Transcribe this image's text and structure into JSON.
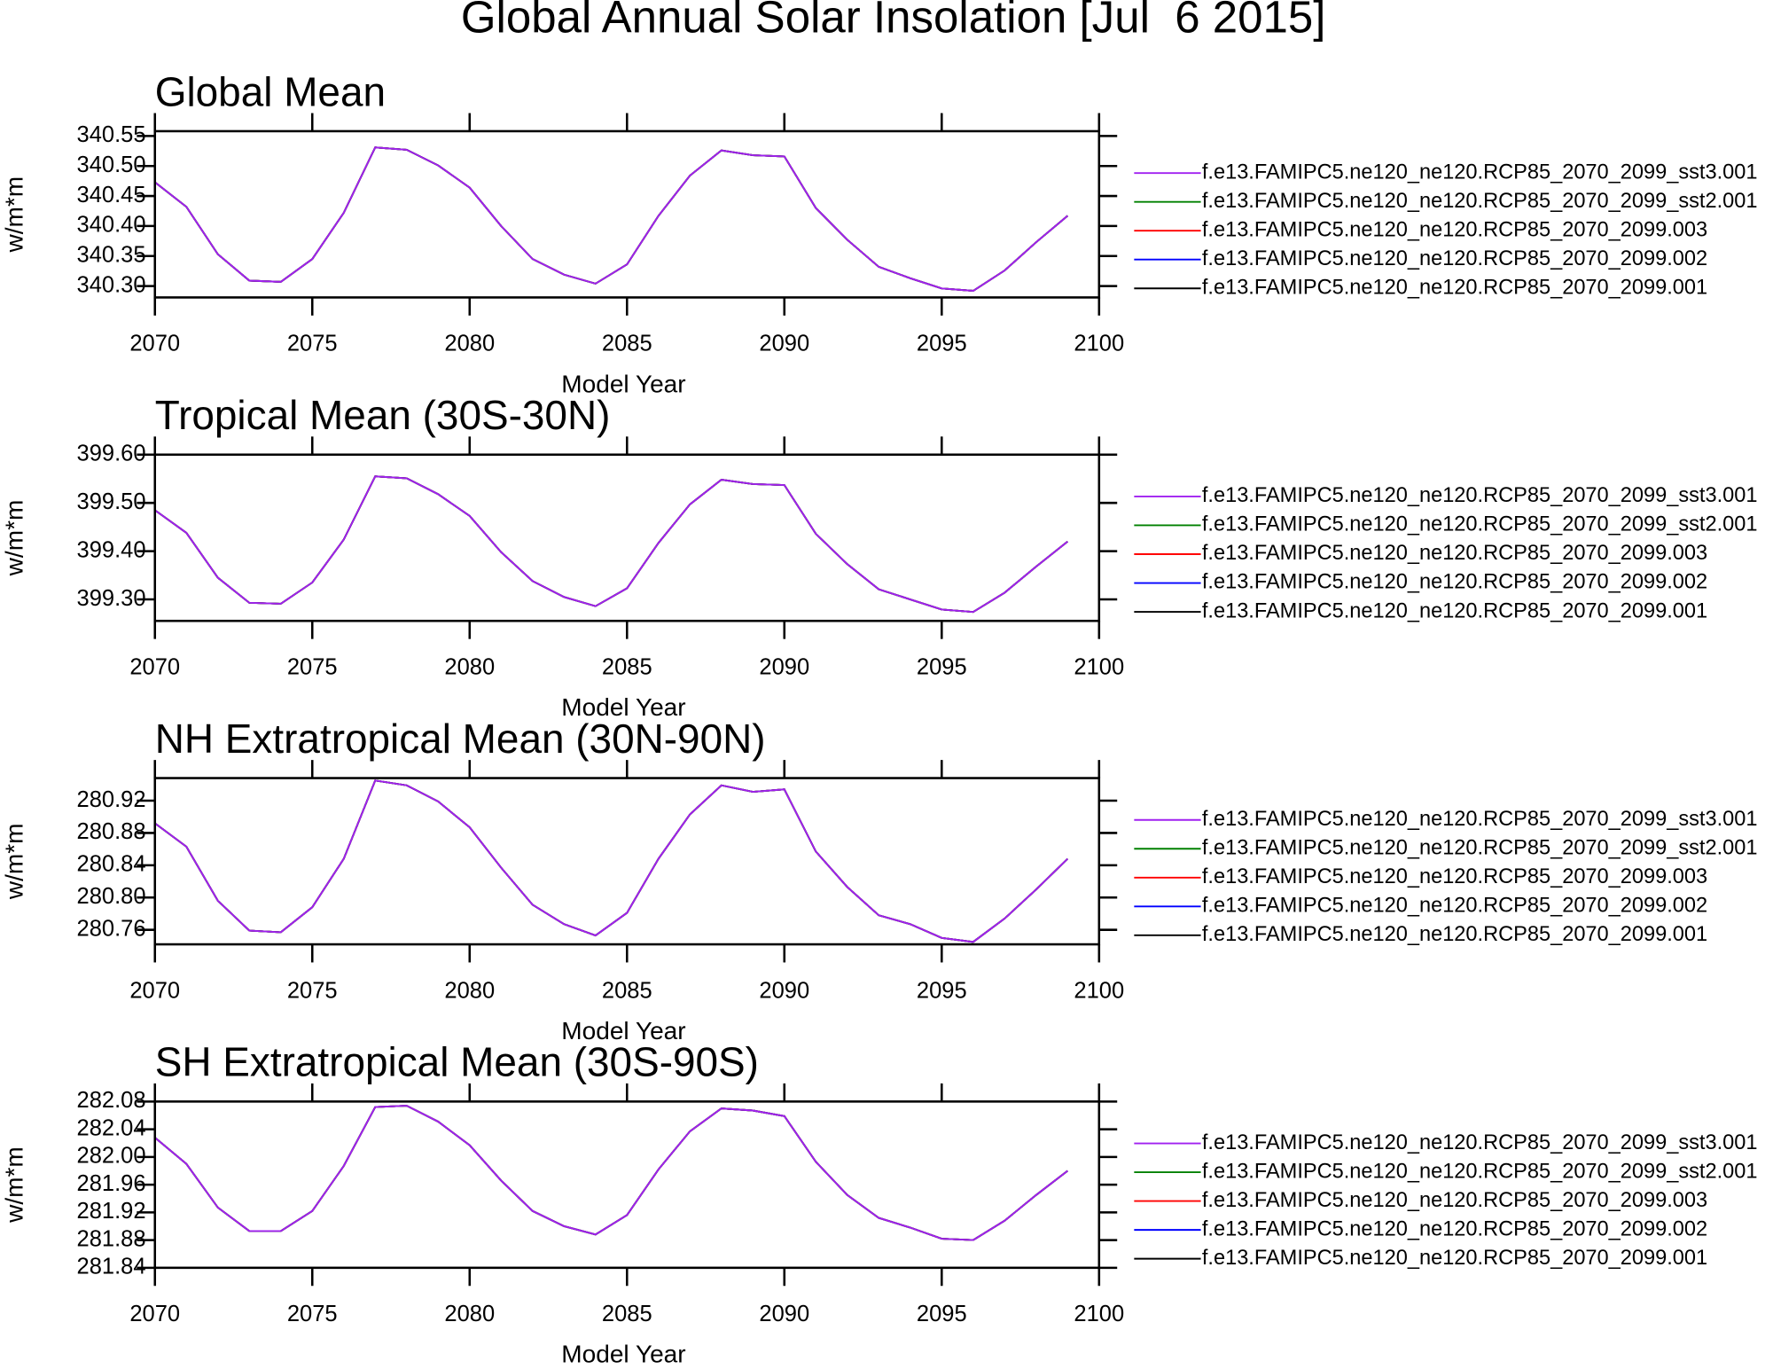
{
  "title": "Global Annual Solar Insolation [Jul  6 2015]",
  "chart_data": [
    {
      "type": "line",
      "title": "Global Mean",
      "xlabel": "Model Year",
      "ylabel": "w/m*m",
      "x": [
        2070,
        2071,
        2072,
        2073,
        2074,
        2075,
        2076,
        2077,
        2078,
        2079,
        2080,
        2081,
        2082,
        2083,
        2084,
        2085,
        2086,
        2087,
        2088,
        2089,
        2090,
        2091,
        2092,
        2093,
        2094,
        2095,
        2096,
        2097,
        2098,
        2099
      ],
      "xlim": [
        2070,
        2100
      ],
      "xticks": [
        2070,
        2075,
        2080,
        2085,
        2090,
        2095,
        2100
      ],
      "ylim": [
        340.281,
        340.558
      ],
      "yticks": [
        {
          "value": 340.3,
          "label": "340.30"
        },
        340.35,
        {
          "value": 340.4,
          "label": "340.40"
        },
        340.45,
        {
          "value": 340.5,
          "label": "340.50"
        },
        340.55
      ],
      "series": [
        {
          "name": "f.e13.FAMIPC5.ne120_ne120.RCP85_2070_2099_sst3.001",
          "color": "#a020f0",
          "values": [
            340.473,
            340.432,
            340.353,
            340.309,
            340.307,
            340.345,
            340.422,
            340.531,
            340.527,
            340.501,
            340.464,
            340.4,
            340.345,
            340.319,
            340.304,
            340.336,
            340.417,
            340.484,
            340.526,
            340.518,
            340.516,
            340.43,
            340.377,
            340.332,
            340.313,
            340.296,
            340.292,
            340.326,
            340.373,
            340.417
          ]
        },
        {
          "name": "f.e13.FAMIPC5.ne120_ne120.RCP85_2070_2099_sst2.001",
          "color": "#008000",
          "values": [
            340.473,
            340.432,
            340.353,
            340.309,
            340.307,
            340.345,
            340.422,
            340.531,
            340.527,
            340.501,
            340.464,
            340.4,
            340.345,
            340.319,
            340.304,
            340.336,
            340.417,
            340.484,
            340.526,
            340.518,
            340.516,
            340.43,
            340.377,
            340.332,
            340.313,
            340.296,
            340.292,
            340.326,
            340.373,
            340.417
          ]
        },
        {
          "name": "f.e13.FAMIPC5.ne120_ne120.RCP85_2070_2099.003",
          "color": "#ff0000",
          "values": [
            340.473,
            340.432,
            340.353,
            340.309,
            340.307,
            340.345,
            340.422,
            340.531,
            340.527,
            340.501,
            340.464,
            340.4,
            340.345,
            340.319,
            340.304,
            340.336,
            340.417,
            340.484,
            340.526,
            340.518,
            340.516,
            340.43,
            340.377,
            340.332,
            340.313,
            340.296,
            340.292,
            340.326,
            340.373,
            340.417
          ]
        },
        {
          "name": "f.e13.FAMIPC5.ne120_ne120.RCP85_2070_2099.002",
          "color": "#0000ff",
          "values": [
            340.473,
            340.432,
            340.353,
            340.309,
            340.307,
            340.345,
            340.422,
            340.531,
            340.527,
            340.501,
            340.464,
            340.4,
            340.345,
            340.319,
            340.304,
            340.336,
            340.417,
            340.484,
            340.526,
            340.518,
            340.516,
            340.43,
            340.377,
            340.332,
            340.313,
            340.296,
            340.292,
            340.326,
            340.373,
            340.417
          ]
        },
        {
          "name": "f.e13.FAMIPC5.ne120_ne120.RCP85_2070_2099.001",
          "color": "#000000",
          "values": [
            340.473,
            340.432,
            340.353,
            340.309,
            340.307,
            340.345,
            340.422,
            340.531,
            340.527,
            340.501,
            340.464,
            340.4,
            340.345,
            340.319,
            340.304,
            340.336,
            340.417,
            340.484,
            340.526,
            340.518,
            340.516,
            340.43,
            340.377,
            340.332,
            340.313,
            340.296,
            340.292,
            340.326,
            340.373,
            340.417
          ]
        }
      ]
    },
    {
      "type": "line",
      "title": "Tropical Mean (30S-30N)",
      "xlabel": "Model Year",
      "ylabel": "w/m*m",
      "x": [
        2070,
        2071,
        2072,
        2073,
        2074,
        2075,
        2076,
        2077,
        2078,
        2079,
        2080,
        2081,
        2082,
        2083,
        2084,
        2085,
        2086,
        2087,
        2088,
        2089,
        2090,
        2091,
        2092,
        2093,
        2094,
        2095,
        2096,
        2097,
        2098,
        2099
      ],
      "xlim": [
        2070,
        2100
      ],
      "xticks": [
        2070,
        2075,
        2080,
        2085,
        2090,
        2095,
        2100
      ],
      "ylim": [
        399.2555,
        399.6
      ],
      "yticks": [
        {
          "value": 399.3,
          "label": "399.30"
        },
        {
          "value": 399.4,
          "label": "399.40"
        },
        {
          "value": 399.5,
          "label": "399.50"
        },
        {
          "value": 399.6,
          "label": "399.60"
        }
      ],
      "series": [
        {
          "name": "f.e13.FAMIPC5.ne120_ne120.RCP85_2070_2099_sst3.001",
          "color": "#a020f0",
          "values": [
            399.485,
            399.438,
            399.345,
            399.293,
            399.291,
            399.335,
            399.424,
            399.555,
            399.551,
            399.518,
            399.473,
            399.398,
            399.338,
            399.305,
            399.286,
            399.323,
            399.417,
            399.497,
            399.548,
            399.539,
            399.537,
            399.436,
            399.373,
            399.321,
            399.3,
            399.279,
            399.274,
            399.314,
            399.368,
            399.42
          ]
        },
        {
          "name": "f.e13.FAMIPC5.ne120_ne120.RCP85_2070_2099_sst2.001",
          "color": "#008000",
          "values": [
            399.485,
            399.438,
            399.345,
            399.293,
            399.291,
            399.335,
            399.424,
            399.555,
            399.551,
            399.518,
            399.473,
            399.398,
            399.338,
            399.305,
            399.286,
            399.323,
            399.417,
            399.497,
            399.548,
            399.539,
            399.537,
            399.436,
            399.373,
            399.321,
            399.3,
            399.279,
            399.274,
            399.314,
            399.368,
            399.42
          ]
        },
        {
          "name": "f.e13.FAMIPC5.ne120_ne120.RCP85_2070_2099.003",
          "color": "#ff0000",
          "values": [
            399.485,
            399.438,
            399.345,
            399.293,
            399.291,
            399.335,
            399.424,
            399.555,
            399.551,
            399.518,
            399.473,
            399.398,
            399.338,
            399.305,
            399.286,
            399.323,
            399.417,
            399.497,
            399.548,
            399.539,
            399.537,
            399.436,
            399.373,
            399.321,
            399.3,
            399.279,
            399.274,
            399.314,
            399.368,
            399.42
          ]
        },
        {
          "name": "f.e13.FAMIPC5.ne120_ne120.RCP85_2070_2099.002",
          "color": "#0000ff",
          "values": [
            399.485,
            399.438,
            399.345,
            399.293,
            399.291,
            399.335,
            399.424,
            399.555,
            399.551,
            399.518,
            399.473,
            399.398,
            399.338,
            399.305,
            399.286,
            399.323,
            399.417,
            399.497,
            399.548,
            399.539,
            399.537,
            399.436,
            399.373,
            399.321,
            399.3,
            399.279,
            399.274,
            399.314,
            399.368,
            399.42
          ]
        },
        {
          "name": "f.e13.FAMIPC5.ne120_ne120.RCP85_2070_2099.001",
          "color": "#000000",
          "values": [
            399.485,
            399.438,
            399.345,
            399.293,
            399.291,
            399.335,
            399.424,
            399.555,
            399.551,
            399.518,
            399.473,
            399.398,
            399.338,
            399.305,
            399.286,
            399.323,
            399.417,
            399.497,
            399.548,
            399.539,
            399.537,
            399.436,
            399.373,
            399.321,
            399.3,
            399.279,
            399.274,
            399.314,
            399.368,
            399.42
          ]
        }
      ]
    },
    {
      "type": "line",
      "title": "NH Extratropical Mean (30N-90N)",
      "xlabel": "Model Year",
      "ylabel": "w/m*m",
      "x": [
        2070,
        2071,
        2072,
        2073,
        2074,
        2075,
        2076,
        2077,
        2078,
        2079,
        2080,
        2081,
        2082,
        2083,
        2084,
        2085,
        2086,
        2087,
        2088,
        2089,
        2090,
        2091,
        2092,
        2093,
        2094,
        2095,
        2096,
        2097,
        2098,
        2099
      ],
      "xlim": [
        2070,
        2100
      ],
      "xticks": [
        2070,
        2075,
        2080,
        2085,
        2090,
        2095,
        2100
      ],
      "ylim": [
        280.742,
        280.948
      ],
      "yticks": [
        280.76,
        {
          "value": 280.8,
          "label": "280.80"
        },
        280.84,
        280.88,
        280.92
      ],
      "series": [
        {
          "name": "f.e13.FAMIPC5.ne120_ne120.RCP85_2070_2099_sst3.001",
          "color": "#a020f0",
          "values": [
            280.892,
            280.863,
            280.796,
            280.759,
            280.757,
            280.788,
            280.848,
            280.945,
            280.939,
            280.919,
            280.887,
            280.837,
            280.791,
            280.767,
            280.753,
            280.781,
            280.848,
            280.903,
            280.939,
            280.931,
            280.934,
            280.857,
            280.813,
            280.778,
            280.767,
            280.75,
            280.745,
            280.774,
            280.81,
            280.848
          ]
        },
        {
          "name": "f.e13.FAMIPC5.ne120_ne120.RCP85_2070_2099_sst2.001",
          "color": "#008000",
          "values": [
            280.892,
            280.863,
            280.796,
            280.759,
            280.757,
            280.788,
            280.848,
            280.945,
            280.939,
            280.919,
            280.887,
            280.837,
            280.791,
            280.767,
            280.753,
            280.781,
            280.848,
            280.903,
            280.939,
            280.931,
            280.934,
            280.857,
            280.813,
            280.778,
            280.767,
            280.75,
            280.745,
            280.774,
            280.81,
            280.848
          ]
        },
        {
          "name": "f.e13.FAMIPC5.ne120_ne120.RCP85_2070_2099.003",
          "color": "#ff0000",
          "values": [
            280.892,
            280.863,
            280.796,
            280.759,
            280.757,
            280.788,
            280.848,
            280.945,
            280.939,
            280.919,
            280.887,
            280.837,
            280.791,
            280.767,
            280.753,
            280.781,
            280.848,
            280.903,
            280.939,
            280.931,
            280.934,
            280.857,
            280.813,
            280.778,
            280.767,
            280.75,
            280.745,
            280.774,
            280.81,
            280.848
          ]
        },
        {
          "name": "f.e13.FAMIPC5.ne120_ne120.RCP85_2070_2099.002",
          "color": "#0000ff",
          "values": [
            280.892,
            280.863,
            280.796,
            280.759,
            280.757,
            280.788,
            280.848,
            280.945,
            280.939,
            280.919,
            280.887,
            280.837,
            280.791,
            280.767,
            280.753,
            280.781,
            280.848,
            280.903,
            280.939,
            280.931,
            280.934,
            280.857,
            280.813,
            280.778,
            280.767,
            280.75,
            280.745,
            280.774,
            280.81,
            280.848
          ]
        },
        {
          "name": "f.e13.FAMIPC5.ne120_ne120.RCP85_2070_2099.001",
          "color": "#000000",
          "values": [
            280.892,
            280.863,
            280.796,
            280.759,
            280.757,
            280.788,
            280.848,
            280.945,
            280.939,
            280.919,
            280.887,
            280.837,
            280.791,
            280.767,
            280.753,
            280.781,
            280.848,
            280.903,
            280.939,
            280.931,
            280.934,
            280.857,
            280.813,
            280.778,
            280.767,
            280.75,
            280.745,
            280.774,
            280.81,
            280.848
          ]
        }
      ]
    },
    {
      "type": "line",
      "title": "SH Extratropical Mean (30S-90S)",
      "xlabel": "Model Year",
      "ylabel": "w/m*m",
      "x": [
        2070,
        2071,
        2072,
        2073,
        2074,
        2075,
        2076,
        2077,
        2078,
        2079,
        2080,
        2081,
        2082,
        2083,
        2084,
        2085,
        2086,
        2087,
        2088,
        2089,
        2090,
        2091,
        2092,
        2093,
        2094,
        2095,
        2096,
        2097,
        2098,
        2099
      ],
      "xlim": [
        2070,
        2100
      ],
      "xticks": [
        2070,
        2075,
        2080,
        2085,
        2090,
        2095,
        2100
      ],
      "ylim": [
        281.84,
        282.08
      ],
      "yticks": [
        281.84,
        281.88,
        281.92,
        281.96,
        {
          "value": 282.0,
          "label": "282.00"
        },
        282.04,
        282.08
      ],
      "series": [
        {
          "name": "f.e13.FAMIPC5.ne120_ne120.RCP85_2070_2099_sst3.001",
          "color": "#a020f0",
          "values": [
            282.028,
            281.99,
            281.927,
            281.893,
            281.893,
            281.922,
            281.987,
            282.072,
            282.074,
            282.051,
            282.017,
            281.966,
            281.922,
            281.9,
            281.888,
            281.916,
            281.982,
            282.037,
            282.07,
            282.067,
            282.059,
            281.993,
            281.945,
            281.912,
            281.898,
            281.882,
            281.88,
            281.908,
            281.945,
            281.98
          ]
        },
        {
          "name": "f.e13.FAMIPC5.ne120_ne120.RCP85_2070_2099_sst2.001",
          "color": "#008000",
          "values": [
            282.028,
            281.99,
            281.927,
            281.893,
            281.893,
            281.922,
            281.987,
            282.072,
            282.074,
            282.051,
            282.017,
            281.966,
            281.922,
            281.9,
            281.888,
            281.916,
            281.982,
            282.037,
            282.07,
            282.067,
            282.059,
            281.993,
            281.945,
            281.912,
            281.898,
            281.882,
            281.88,
            281.908,
            281.945,
            281.98
          ]
        },
        {
          "name": "f.e13.FAMIPC5.ne120_ne120.RCP85_2070_2099.003",
          "color": "#ff0000",
          "values": [
            282.028,
            281.99,
            281.927,
            281.893,
            281.893,
            281.922,
            281.987,
            282.072,
            282.074,
            282.051,
            282.017,
            281.966,
            281.922,
            281.9,
            281.888,
            281.916,
            281.982,
            282.037,
            282.07,
            282.067,
            282.059,
            281.993,
            281.945,
            281.912,
            281.898,
            281.882,
            281.88,
            281.908,
            281.945,
            281.98
          ]
        },
        {
          "name": "f.e13.FAMIPC5.ne120_ne120.RCP85_2070_2099.002",
          "color": "#0000ff",
          "values": [
            282.028,
            281.99,
            281.927,
            281.893,
            281.893,
            281.922,
            281.987,
            282.072,
            282.074,
            282.051,
            282.017,
            281.966,
            281.922,
            281.9,
            281.888,
            281.916,
            281.982,
            282.037,
            282.07,
            282.067,
            282.059,
            281.993,
            281.945,
            281.912,
            281.898,
            281.882,
            281.88,
            281.908,
            281.945,
            281.98
          ]
        },
        {
          "name": "f.e13.FAMIPC5.ne120_ne120.RCP85_2070_2099.001",
          "color": "#000000",
          "values": [
            282.028,
            281.99,
            281.927,
            281.893,
            281.893,
            281.922,
            281.987,
            282.072,
            282.074,
            282.051,
            282.017,
            281.966,
            281.922,
            281.9,
            281.888,
            281.916,
            281.982,
            282.037,
            282.07,
            282.067,
            282.059,
            281.993,
            281.945,
            281.912,
            281.898,
            281.882,
            281.88,
            281.908,
            281.945,
            281.98
          ]
        }
      ]
    }
  ]
}
